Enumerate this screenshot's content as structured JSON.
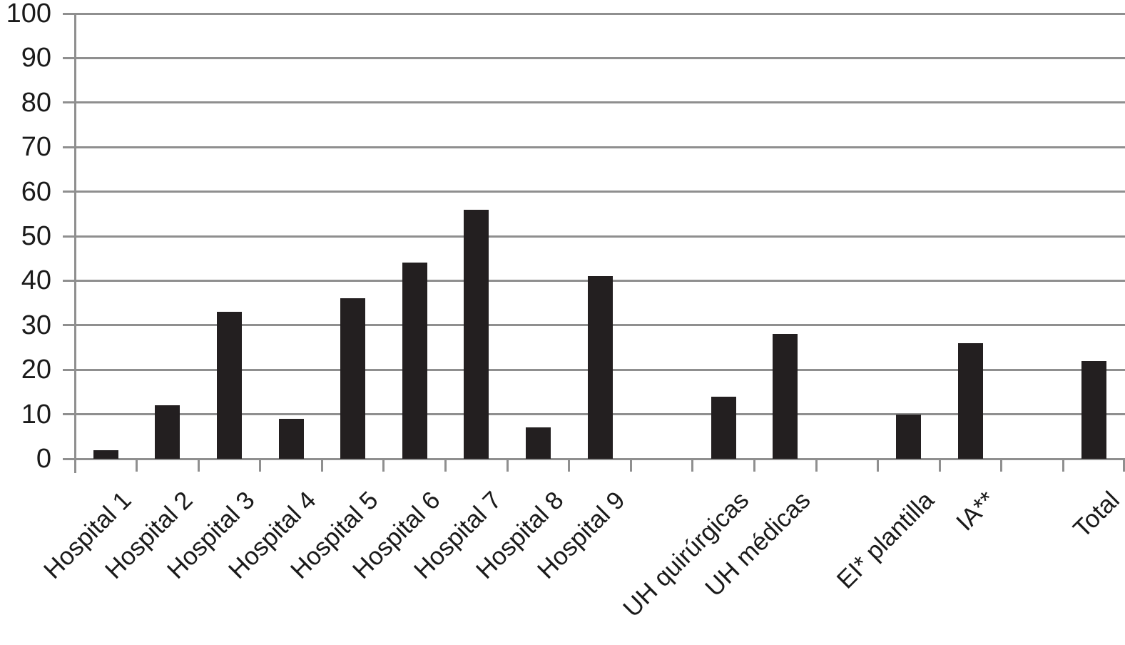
{
  "chart_data": {
    "type": "bar",
    "title": "",
    "xlabel": "",
    "ylabel": "",
    "categories": [
      "Hospital 1",
      "Hospital 2",
      "Hospital 3",
      "Hospital 4",
      "Hospital 5",
      "Hospital 6",
      "Hospital 7",
      "Hospital 8",
      "Hospital 9",
      "UH quirúrgicas",
      "UH médicas",
      "EI* plantilla",
      "IA**",
      "Total"
    ],
    "values": [
      2,
      12,
      33,
      9,
      36,
      44,
      56,
      7,
      41,
      14,
      28,
      10,
      26,
      22
    ],
    "slot_indices": [
      0,
      1,
      2,
      3,
      4,
      5,
      6,
      7,
      8,
      10,
      11,
      13,
      14,
      16
    ],
    "total_slots": 17,
    "ylim": [
      0,
      100
    ],
    "ytick_step": 10,
    "y_tick_labels": [
      "0",
      "10",
      "20",
      "30",
      "40",
      "50",
      "60",
      "70",
      "80",
      "90",
      "100"
    ],
    "grid": true,
    "legend_position": "none",
    "x_label_rotation_deg": -45,
    "colors": {
      "bar": "#231f20",
      "gridline": "#8f8f8f",
      "axis": "#8f8f8f",
      "label": "#1a1a1a",
      "background": "#ffffff"
    }
  }
}
